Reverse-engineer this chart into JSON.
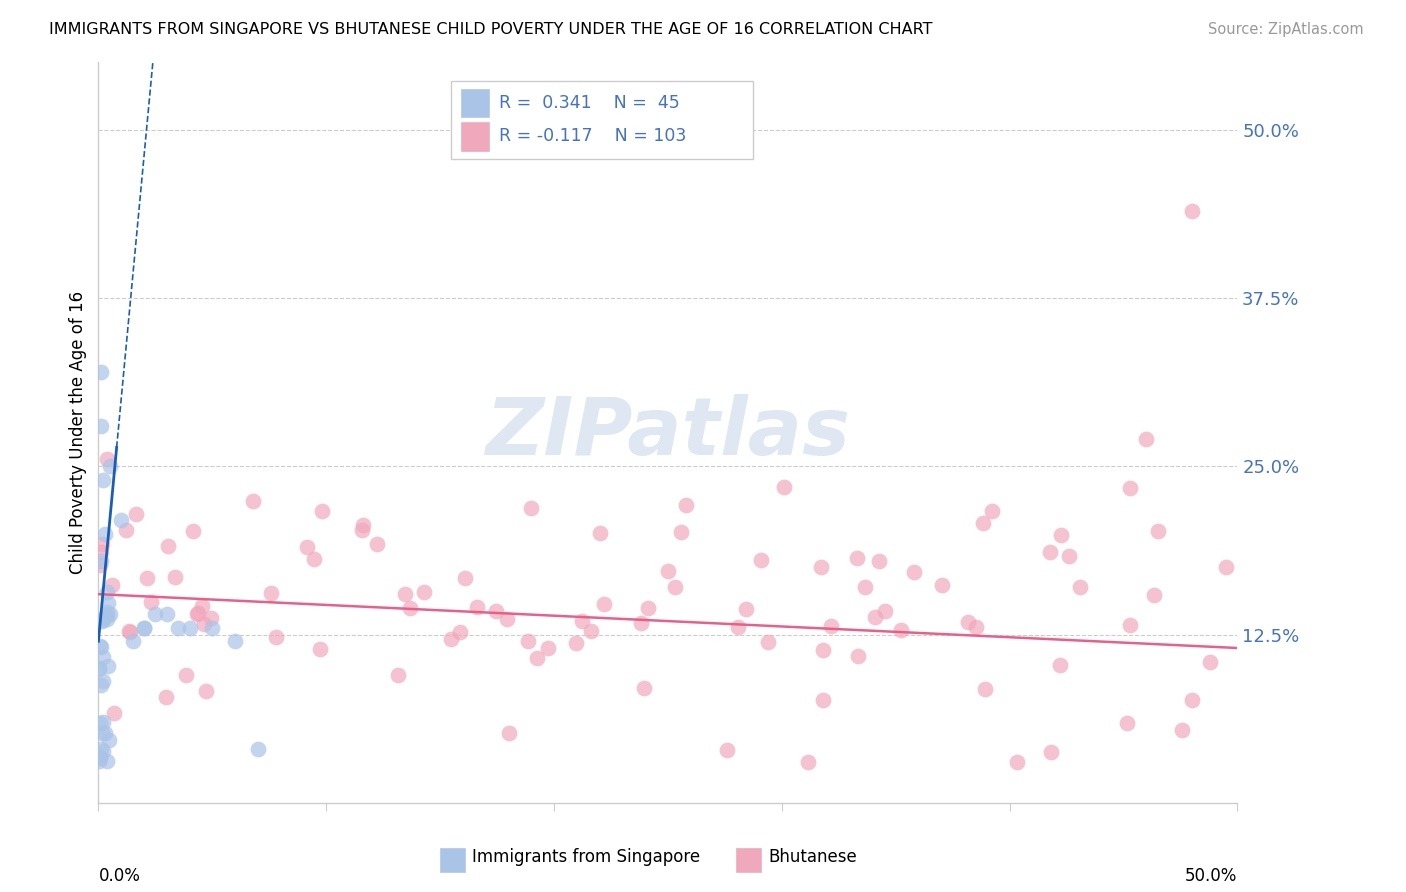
{
  "title": "IMMIGRANTS FROM SINGAPORE VS BHUTANESE CHILD POVERTY UNDER THE AGE OF 16 CORRELATION CHART",
  "source": "Source: ZipAtlas.com",
  "ylabel": "Child Poverty Under the Age of 16",
  "y_tick_vals": [
    0.125,
    0.25,
    0.375,
    0.5
  ],
  "y_tick_labels": [
    "12.5%",
    "25.0%",
    "37.5%",
    "50.0%"
  ],
  "x_range": [
    0.0,
    0.5
  ],
  "y_range": [
    0.0,
    0.55
  ],
  "r_singapore": 0.341,
  "n_singapore": 45,
  "r_bhutanese": -0.117,
  "n_bhutanese": 103,
  "singapore_color": "#aac4e8",
  "bhutanese_color": "#f0a8bc",
  "singapore_line_color": "#1a5db5",
  "bhutanese_line_color": "#e8608a",
  "watermark": "ZIPatlas",
  "watermark_color": "#c8d8ea",
  "tick_color": "#4472c4",
  "grid_color": "#cccccc",
  "spine_color": "#cccccc",
  "legend_text_color": "#4472c4",
  "legend_border_color": "#cccccc",
  "bottom_legend_items": [
    {
      "label": "Immigrants from Singapore",
      "color": "#aac4e8"
    },
    {
      "label": "Bhutanese",
      "color": "#f0a8bc"
    }
  ]
}
